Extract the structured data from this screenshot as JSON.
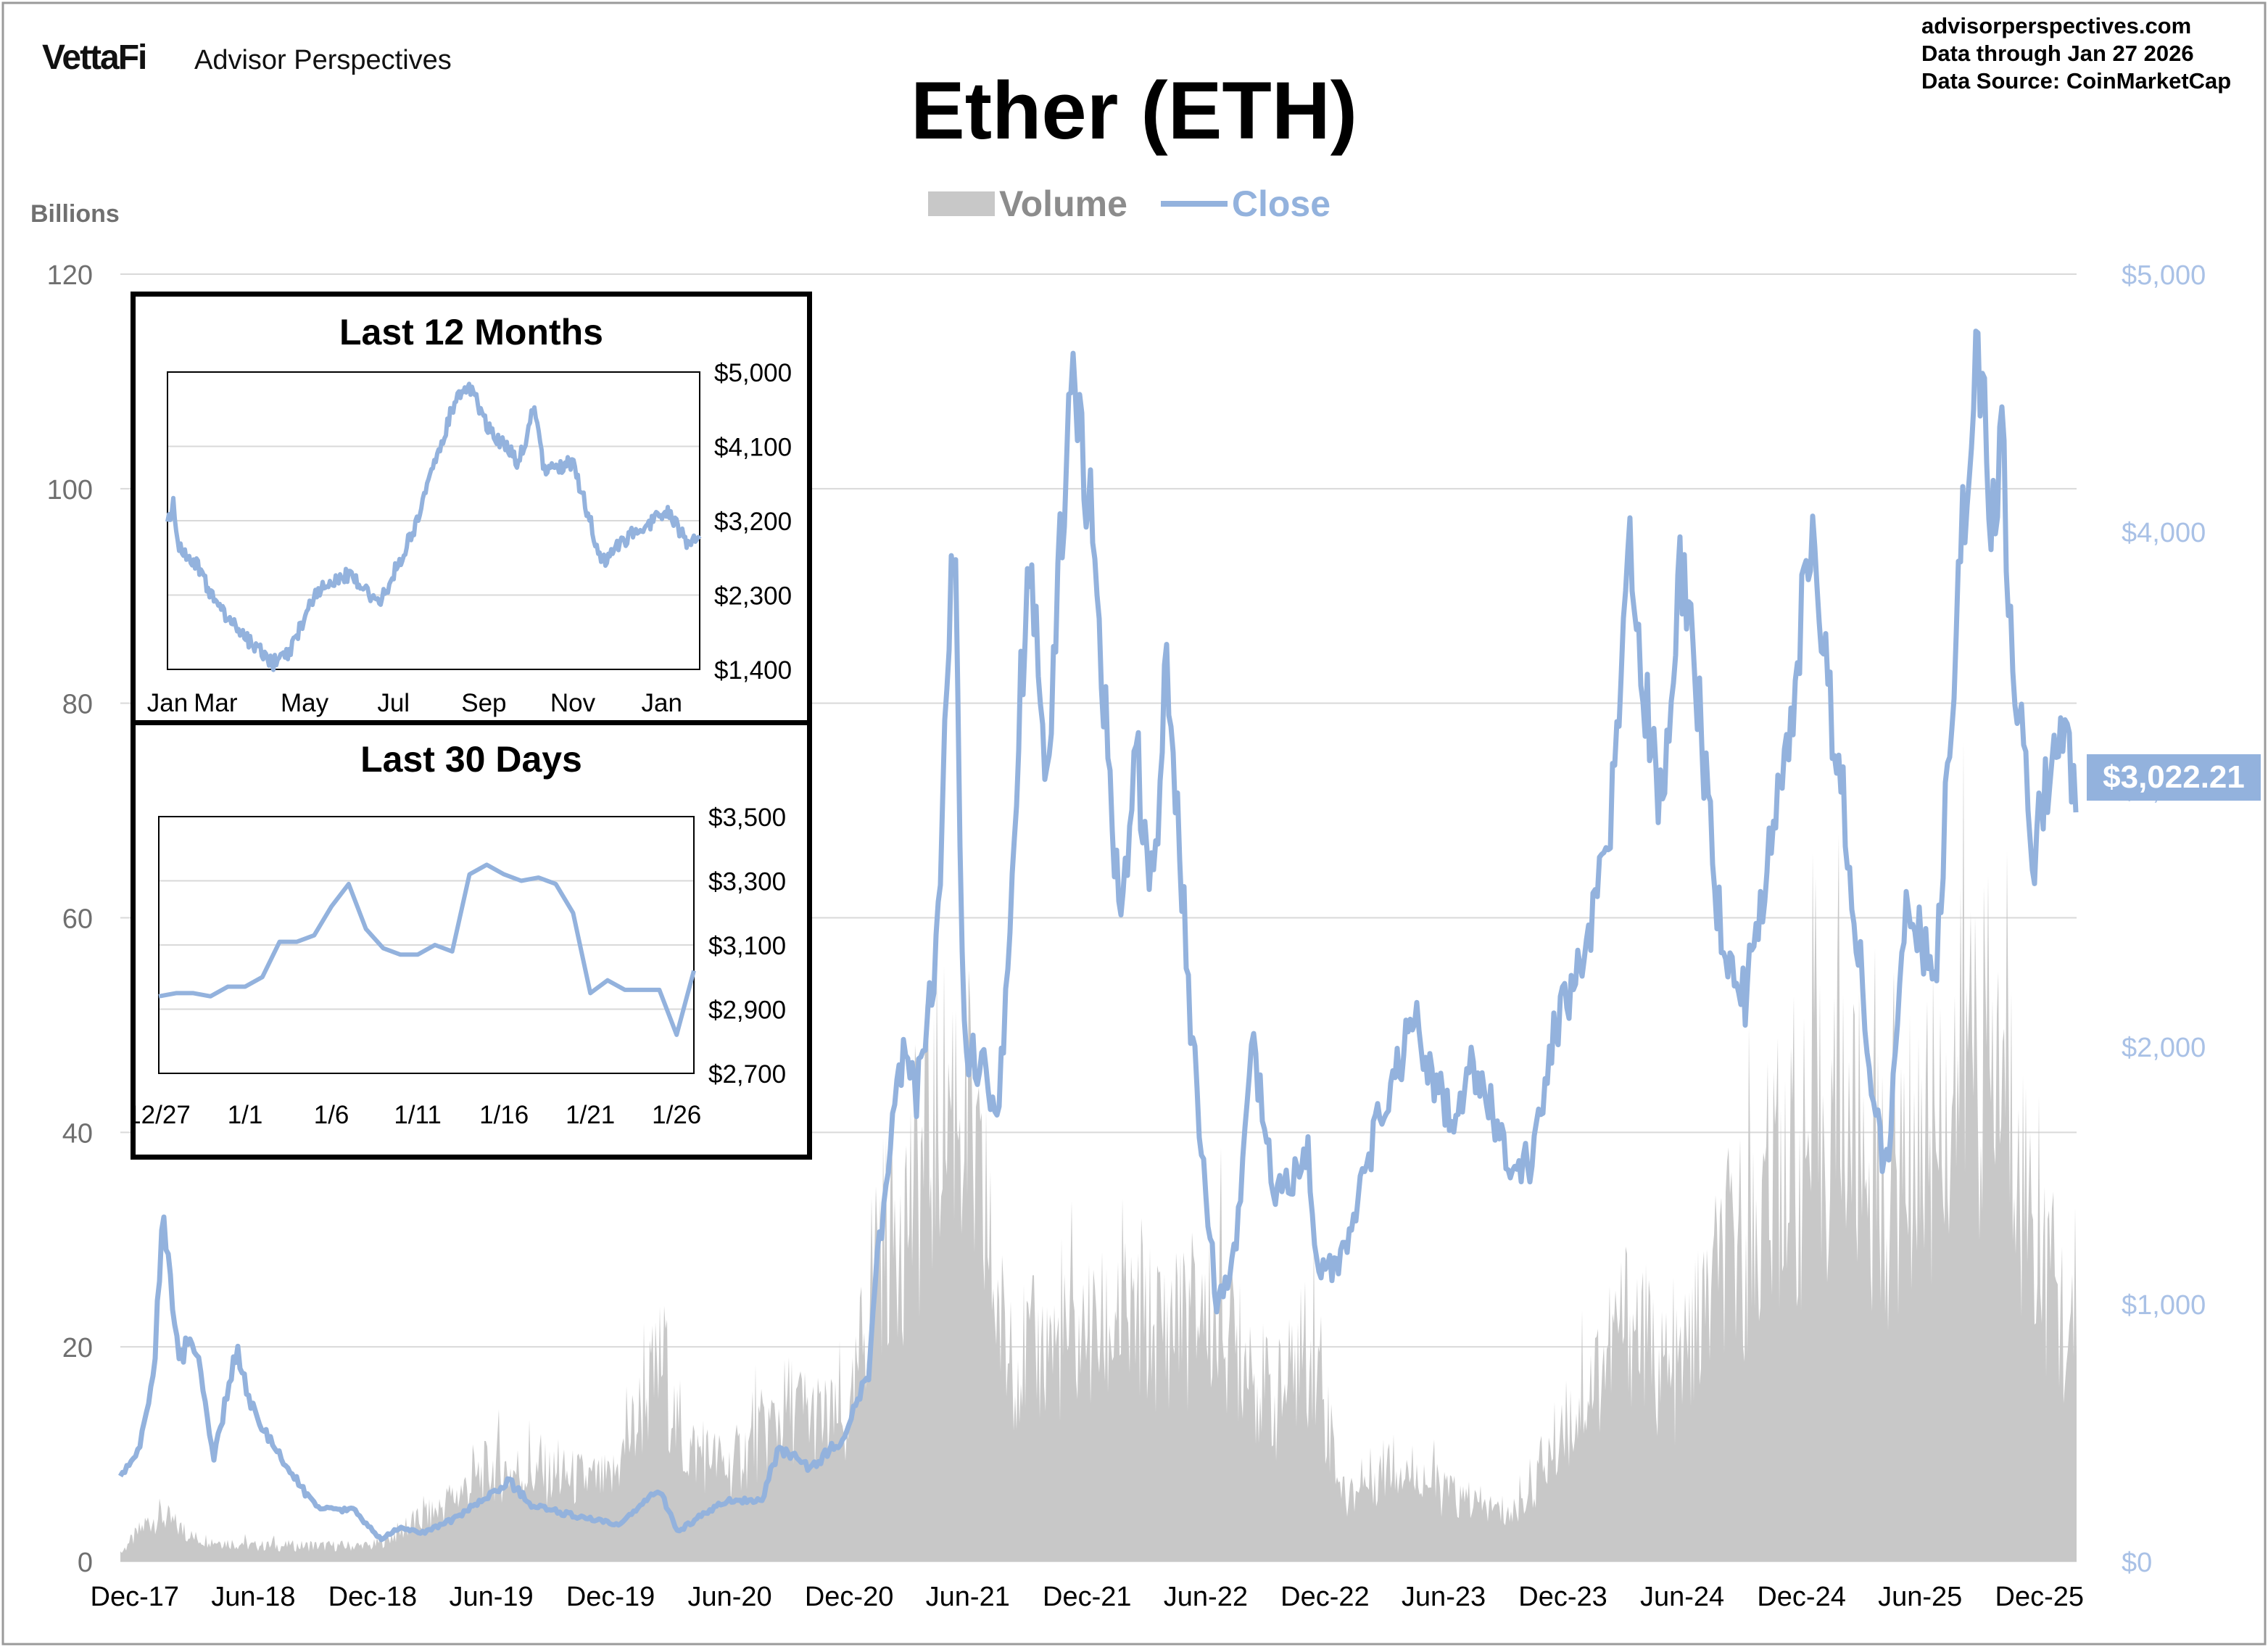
{
  "header": {
    "brand_logo": "VettaFi",
    "brand_name": "Advisor Perspectives",
    "title": "Ether (ETH)",
    "source_lines": [
      "advisorperspectives.com",
      "Data through  Jan 27 2026",
      "Data Source:  CoinMarketCap"
    ]
  },
  "colors": {
    "volume": "#c8c8c8",
    "close": "#93b2dd",
    "grid": "#d9d9d9",
    "axis_text": "#6f6f6f"
  },
  "chart_data": [
    {
      "type": "area",
      "title": "Ether (ETH)",
      "legend": {
        "placement": "top-center",
        "entries": [
          "Volume",
          "Close"
        ]
      },
      "x_tick_labels": [
        "Dec-17",
        "Jun-18",
        "Dec-18",
        "Jun-19",
        "Dec-19",
        "Jun-20",
        "Dec-20",
        "Jun-21",
        "Dec-21",
        "Jun-22",
        "Dec-22",
        "Jun-23",
        "Dec-23",
        "Jun-24",
        "Dec-24",
        "Jun-25",
        "Dec-25"
      ],
      "x_range": [
        "2017-11-09",
        "2026-01-27"
      ],
      "y_left": {
        "label": "Billions",
        "range": [
          0,
          120
        ],
        "ticks": [
          "0",
          "20",
          "40",
          "60",
          "80",
          "100",
          "120"
        ]
      },
      "y_right": {
        "range": [
          0,
          5000
        ],
        "ticks": [
          "$0",
          "$1,000",
          "$2,000",
          "$3,000",
          "$4,000",
          "$5,000"
        ]
      },
      "grid": true,
      "last_value_label": "$3,022.21",
      "series": [
        {
          "name": "Close",
          "axis": "right",
          "points": [
            [
              "2017-11-09",
              320
            ],
            [
              "2017-12-10",
              450
            ],
            [
              "2017-12-31",
              750
            ],
            [
              "2018-01-13",
              1380
            ],
            [
              "2018-02-06",
              780
            ],
            [
              "2018-03-01",
              880
            ],
            [
              "2018-04-01",
              390
            ],
            [
              "2018-05-06",
              830
            ],
            [
              "2018-06-01",
              580
            ],
            [
              "2018-07-01",
              450
            ],
            [
              "2018-08-15",
              280
            ],
            [
              "2018-09-15",
              200
            ],
            [
              "2018-11-01",
              200
            ],
            [
              "2018-12-14",
              85
            ],
            [
              "2019-01-10",
              130
            ],
            [
              "2019-02-15",
              110
            ],
            [
              "2019-04-01",
              160
            ],
            [
              "2019-06-01",
              260
            ],
            [
              "2019-06-27",
              315
            ],
            [
              "2019-08-01",
              220
            ],
            [
              "2019-10-01",
              180
            ],
            [
              "2019-12-15",
              140
            ],
            [
              "2020-02-14",
              280
            ],
            [
              "2020-03-13",
              115
            ],
            [
              "2020-05-01",
              200
            ],
            [
              "2020-06-01",
              240
            ],
            [
              "2020-07-20",
              240
            ],
            [
              "2020-08-15",
              440
            ],
            [
              "2020-10-01",
              360
            ],
            [
              "2020-11-20",
              470
            ],
            [
              "2020-12-31",
              740
            ],
            [
              "2021-01-15",
              1200
            ],
            [
              "2021-02-20",
              1950
            ],
            [
              "2021-03-15",
              1800
            ],
            [
              "2021-04-15",
              2400
            ],
            [
              "2021-05-12",
              4150
            ],
            [
              "2021-05-25",
              2000
            ],
            [
              "2021-07-20",
              1800
            ],
            [
              "2021-08-20",
              3300
            ],
            [
              "2021-09-03",
              3900
            ],
            [
              "2021-10-01",
              3000
            ],
            [
              "2021-11-09",
              4800
            ],
            [
              "2021-12-15",
              3800
            ],
            [
              "2022-01-22",
              2400
            ],
            [
              "2022-02-15",
              3100
            ],
            [
              "2022-03-15",
              2600
            ],
            [
              "2022-04-02",
              3500
            ],
            [
              "2022-05-12",
              2000
            ],
            [
              "2022-06-18",
              1000
            ],
            [
              "2022-07-15",
              1200
            ],
            [
              "2022-08-13",
              2000
            ],
            [
              "2022-09-15",
              1400
            ],
            [
              "2022-11-05",
              1600
            ],
            [
              "2022-11-20",
              1100
            ],
            [
              "2022-12-31",
              1200
            ],
            [
              "2023-02-15",
              1650
            ],
            [
              "2023-04-15",
              2100
            ],
            [
              "2023-06-15",
              1700
            ],
            [
              "2023-07-15",
              1950
            ],
            [
              "2023-09-10",
              1560
            ],
            [
              "2023-10-15",
              1550
            ],
            [
              "2023-11-15",
              2050
            ],
            [
              "2023-12-28",
              2350
            ],
            [
              "2024-01-15",
              2500
            ],
            [
              "2024-02-15",
              2950
            ],
            [
              "2024-03-12",
              4050
            ],
            [
              "2024-04-15",
              3100
            ],
            [
              "2024-05-01",
              2950
            ],
            [
              "2024-05-28",
              3850
            ],
            [
              "2024-06-25",
              3350
            ],
            [
              "2024-08-05",
              2300
            ],
            [
              "2024-09-06",
              2200
            ],
            [
              "2024-10-01",
              2600
            ],
            [
              "2024-11-10",
              3200
            ],
            [
              "2024-12-16",
              4000
            ],
            [
              "2025-01-15",
              3300
            ],
            [
              "2025-02-15",
              2700
            ],
            [
              "2025-03-15",
              1900
            ],
            [
              "2025-04-09",
              1470
            ],
            [
              "2025-05-13",
              2650
            ],
            [
              "2025-06-22",
              2200
            ],
            [
              "2025-07-15",
              3100
            ],
            [
              "2025-08-24",
              4800
            ],
            [
              "2025-09-25",
              3900
            ],
            [
              "2025-10-06",
              4500
            ],
            [
              "2025-10-12",
              3800
            ],
            [
              "2025-11-21",
              2700
            ],
            [
              "2025-12-15",
              3100
            ],
            [
              "2026-01-06",
              3300
            ],
            [
              "2026-01-14",
              3350
            ],
            [
              "2026-01-20",
              2900
            ],
            [
              "2026-01-27",
              3022.21
            ]
          ]
        },
        {
          "name": "Volume",
          "axis": "left",
          "points": [
            [
              "2017-11-09",
              1
            ],
            [
              "2017-12-20",
              5
            ],
            [
              "2018-01-10",
              6
            ],
            [
              "2018-03-01",
              3
            ],
            [
              "2018-06-01",
              2
            ],
            [
              "2018-09-01",
              2
            ],
            [
              "2018-12-01",
              2
            ],
            [
              "2019-03-01",
              6
            ],
            [
              "2019-06-01",
              12
            ],
            [
              "2019-09-01",
              11
            ],
            [
              "2019-12-01",
              10
            ],
            [
              "2020-02-20",
              26
            ],
            [
              "2020-03-15",
              15
            ],
            [
              "2020-06-01",
              12
            ],
            [
              "2020-09-01",
              20
            ],
            [
              "2020-12-01",
              16
            ],
            [
              "2021-01-10",
              40
            ],
            [
              "2021-02-20",
              44
            ],
            [
              "2021-05-15",
              62
            ],
            [
              "2021-08-01",
              26
            ],
            [
              "2021-11-10",
              28
            ],
            [
              "2022-01-22",
              30
            ],
            [
              "2022-05-12",
              30
            ],
            [
              "2022-06-18",
              32
            ],
            [
              "2022-09-15",
              20
            ],
            [
              "2022-11-10",
              28
            ],
            [
              "2022-12-31",
              8
            ],
            [
              "2023-03-15",
              13
            ],
            [
              "2023-06-15",
              8
            ],
            [
              "2023-09-15",
              6
            ],
            [
              "2023-12-10",
              18
            ],
            [
              "2024-03-12",
              32
            ],
            [
              "2024-05-15",
              22
            ],
            [
              "2024-08-05",
              38
            ],
            [
              "2024-11-10",
              48
            ],
            [
              "2024-12-10",
              52
            ],
            [
              "2025-02-03",
              58
            ],
            [
              "2025-04-09",
              46
            ],
            [
              "2025-07-20",
              60
            ],
            [
              "2025-08-20",
              68
            ],
            [
              "2025-10-10",
              60
            ],
            [
              "2025-12-01",
              40
            ],
            [
              "2026-01-27",
              26
            ]
          ]
        }
      ]
    },
    {
      "type": "line",
      "title": "Last 12 Months",
      "x_tick_labels": [
        "Jan",
        "Mar",
        "May",
        "Jul",
        "Sep",
        "Nov",
        "Jan"
      ],
      "x_range": [
        "2025-01-27",
        "2026-01-27"
      ],
      "y_range": [
        1400,
        5000
      ],
      "y_ticks": [
        "$1,400",
        "$2,300",
        "$3,200",
        "$4,100",
        "$5,000"
      ],
      "grid": true,
      "series": [
        {
          "name": "Close",
          "points": [
            [
              "2025-01-27",
              3200
            ],
            [
              "2025-01-31",
              3400
            ],
            [
              "2025-02-03",
              2900
            ],
            [
              "2025-02-15",
              2700
            ],
            [
              "2025-03-01",
              2200
            ],
            [
              "2025-03-15",
              1900
            ],
            [
              "2025-04-09",
              1470
            ],
            [
              "2025-04-20",
              1600
            ],
            [
              "2025-05-09",
              2350
            ],
            [
              "2025-06-01",
              2550
            ],
            [
              "2025-06-22",
              2200
            ],
            [
              "2025-07-15",
              3100
            ],
            [
              "2025-08-13",
              4700
            ],
            [
              "2025-08-24",
              4800
            ],
            [
              "2025-09-01",
              4400
            ],
            [
              "2025-09-25",
              3900
            ],
            [
              "2025-10-06",
              4600
            ],
            [
              "2025-10-12",
              3800
            ],
            [
              "2025-11-01",
              3900
            ],
            [
              "2025-11-21",
              2700
            ],
            [
              "2025-12-15",
              3100
            ],
            [
              "2026-01-06",
              3300
            ],
            [
              "2026-01-20",
              2900
            ],
            [
              "2026-01-27",
              3022
            ]
          ]
        }
      ]
    },
    {
      "type": "line",
      "title": "Last 30 Days",
      "x_tick_labels": [
        "12/27",
        "1/1",
        "1/6",
        "1/11",
        "1/16",
        "1/21",
        "1/26"
      ],
      "x_range": [
        "2025-12-27",
        "2026-01-27"
      ],
      "y_range": [
        2700,
        3500
      ],
      "y_ticks": [
        "$2,700",
        "$2,900",
        "$3,100",
        "$3,300",
        "$3,500"
      ],
      "grid": true,
      "series": [
        {
          "name": "Close",
          "points": [
            [
              "2025-12-27",
              2940
            ],
            [
              "2025-12-28",
              2950
            ],
            [
              "2025-12-29",
              2950
            ],
            [
              "2025-12-30",
              2940
            ],
            [
              "2025-12-31",
              2970
            ],
            [
              "2026-01-01",
              2970
            ],
            [
              "2026-01-02",
              3000
            ],
            [
              "2026-01-03",
              3110
            ],
            [
              "2026-01-04",
              3110
            ],
            [
              "2026-01-05",
              3130
            ],
            [
              "2026-01-06",
              3220
            ],
            [
              "2026-01-07",
              3290
            ],
            [
              "2026-01-08",
              3150
            ],
            [
              "2026-01-09",
              3090
            ],
            [
              "2026-01-10",
              3070
            ],
            [
              "2026-01-11",
              3070
            ],
            [
              "2026-01-12",
              3100
            ],
            [
              "2026-01-13",
              3080
            ],
            [
              "2026-01-14",
              3320
            ],
            [
              "2026-01-15",
              3350
            ],
            [
              "2026-01-16",
              3320
            ],
            [
              "2026-01-17",
              3300
            ],
            [
              "2026-01-18",
              3310
            ],
            [
              "2026-01-19",
              3290
            ],
            [
              "2026-01-20",
              3200
            ],
            [
              "2026-01-21",
              2950
            ],
            [
              "2026-01-22",
              2990
            ],
            [
              "2026-01-23",
              2960
            ],
            [
              "2026-01-24",
              2960
            ],
            [
              "2026-01-25",
              2960
            ],
            [
              "2026-01-26",
              2820
            ],
            [
              "2026-01-27",
              3020
            ]
          ]
        }
      ]
    }
  ]
}
